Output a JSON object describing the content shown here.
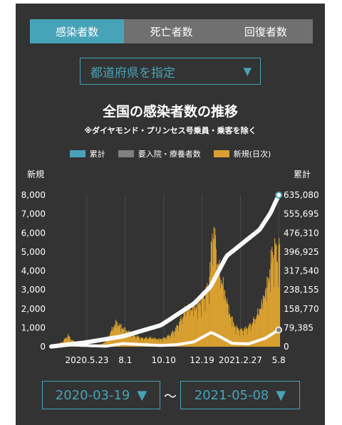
{
  "tabs": [
    {
      "label": "感染者数",
      "active": true
    },
    {
      "label": "死亡者数",
      "active": false
    },
    {
      "label": "回復者数",
      "active": false
    }
  ],
  "prefecture_select": {
    "label": "都道府県を指定",
    "arrow": "▼"
  },
  "date_range": {
    "start": "2020-03-19",
    "end": "2021-05-08",
    "separator": "〜",
    "arrow": "▼"
  },
  "colors": {
    "background": "#333333",
    "accent": "#47a3b8",
    "cumulative": "#47a3b8",
    "hospitalized": "#808080",
    "daily": "#d9a030"
  },
  "chart_data": {
    "type": "bar",
    "title": "全国の感染者数の推移",
    "subtitle": "※ダイヤモンド・プリンセス号乗員・乗客を除く",
    "left_axis_label": "新規",
    "right_axis_label": "累計",
    "legend": [
      {
        "name": "累計",
        "color": "#47a3b8"
      },
      {
        "name": "要入院・療養者数",
        "color": "#808080"
      },
      {
        "name": "新規(日次)",
        "color": "#d9a030"
      }
    ],
    "y_left": {
      "min": 0,
      "max": 8000,
      "ticks": [
        "8,000",
        "7,000",
        "6,000",
        "5,000",
        "4,000",
        "3,000",
        "2,000",
        "1,000",
        "0"
      ]
    },
    "y_right": {
      "min": 0,
      "max": 635080,
      "ticks": [
        "635,080",
        "555,695",
        "476,310",
        "396,925",
        "317,540",
        "238,155",
        "158,770",
        "79,385",
        "0"
      ]
    },
    "x_ticks": [
      "2020.5.23",
      "8.1",
      "10.10",
      "12.19",
      "2021.2.27",
      "5.8"
    ],
    "x_tick_days": [
      65,
      135,
      205,
      275,
      345,
      415
    ],
    "total_days": 416,
    "daily_new_anchors": [
      [
        0,
        30
      ],
      [
        10,
        100
      ],
      [
        20,
        300
      ],
      [
        25,
        500
      ],
      [
        30,
        700
      ],
      [
        35,
        450
      ],
      [
        45,
        200
      ],
      [
        55,
        60
      ],
      [
        65,
        40
      ],
      [
        80,
        80
      ],
      [
        95,
        200
      ],
      [
        105,
        700
      ],
      [
        112,
        1200
      ],
      [
        118,
        1500
      ],
      [
        124,
        1300
      ],
      [
        135,
        1000
      ],
      [
        150,
        700
      ],
      [
        165,
        500
      ],
      [
        180,
        550
      ],
      [
        195,
        450
      ],
      [
        205,
        500
      ],
      [
        215,
        700
      ],
      [
        225,
        1000
      ],
      [
        235,
        1600
      ],
      [
        245,
        2300
      ],
      [
        255,
        2400
      ],
      [
        265,
        2500
      ],
      [
        275,
        3000
      ],
      [
        285,
        3500
      ],
      [
        290,
        5000
      ],
      [
        294,
        7500
      ],
      [
        298,
        6500
      ],
      [
        305,
        4800
      ],
      [
        315,
        3500
      ],
      [
        325,
        2000
      ],
      [
        335,
        1200
      ],
      [
        345,
        1000
      ],
      [
        355,
        1100
      ],
      [
        365,
        1400
      ],
      [
        375,
        2000
      ],
      [
        385,
        2800
      ],
      [
        395,
        4000
      ],
      [
        403,
        5800
      ],
      [
        408,
        6000
      ],
      [
        412,
        5500
      ],
      [
        415,
        6200
      ]
    ],
    "cumulative_anchors": [
      [
        0,
        900
      ],
      [
        60,
        17000
      ],
      [
        130,
        43000
      ],
      [
        200,
        90000
      ],
      [
        260,
        180000
      ],
      [
        290,
        250000
      ],
      [
        320,
        380000
      ],
      [
        350,
        435000
      ],
      [
        380,
        490000
      ],
      [
        400,
        560000
      ],
      [
        415,
        635080
      ]
    ],
    "hospitalized_anchors": [
      [
        0,
        0
      ],
      [
        30,
        10000
      ],
      [
        50,
        6000
      ],
      [
        100,
        2000
      ],
      [
        130,
        13000
      ],
      [
        200,
        5000
      ],
      [
        230,
        9000
      ],
      [
        260,
        20000
      ],
      [
        292,
        60000
      ],
      [
        305,
        45000
      ],
      [
        330,
        14000
      ],
      [
        360,
        12000
      ],
      [
        390,
        35000
      ],
      [
        415,
        70000
      ]
    ]
  }
}
